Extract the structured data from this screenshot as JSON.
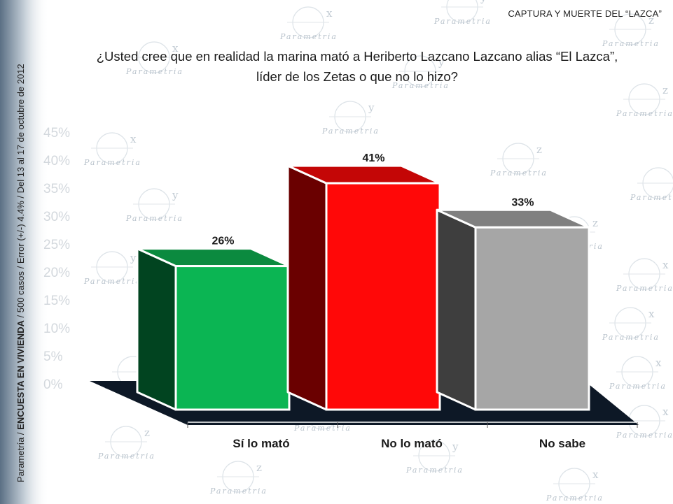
{
  "header": {
    "title": "CAPTURA Y MUERTE DEL “LAZCA”"
  },
  "question": {
    "line1": "¿Usted cree que en realidad la marina mató a Heriberto Lazcano Lazcano alias “El Lazca”,",
    "line2": "líder de los Zetas o que no lo hizo?"
  },
  "side_note": {
    "prefix": "Parametría /",
    "bold": "ENCUESTA EN VIVIENDA",
    "suffix": "/ 500 casos / Error (+/-) 4.4% / Del 13 al 17 de octubre de 2012"
  },
  "watermark": {
    "brand": "Parametria",
    "glyphs": [
      "x",
      "y",
      "z"
    ],
    "scale_labels": [
      "45%",
      "40%",
      "35%",
      "30%",
      "25%",
      "20%",
      "15%",
      "10%",
      "5%",
      "0%"
    ]
  },
  "chart_data": {
    "type": "bar",
    "categories": [
      "Sí lo mató",
      "No lo mató",
      "No sabe"
    ],
    "values": [
      26,
      41,
      33
    ],
    "value_labels": [
      "26%",
      "41%",
      "33%"
    ],
    "colors": {
      "front": [
        "#0bb553",
        "#ff0808",
        "#a6a6a6"
      ],
      "side": [
        "#014420",
        "#6a0000",
        "#3e3e3e"
      ],
      "top": [
        "#0b8a3f",
        "#c40606",
        "#808080"
      ]
    },
    "floor_color": "#0d1826",
    "style": "3d"
  }
}
